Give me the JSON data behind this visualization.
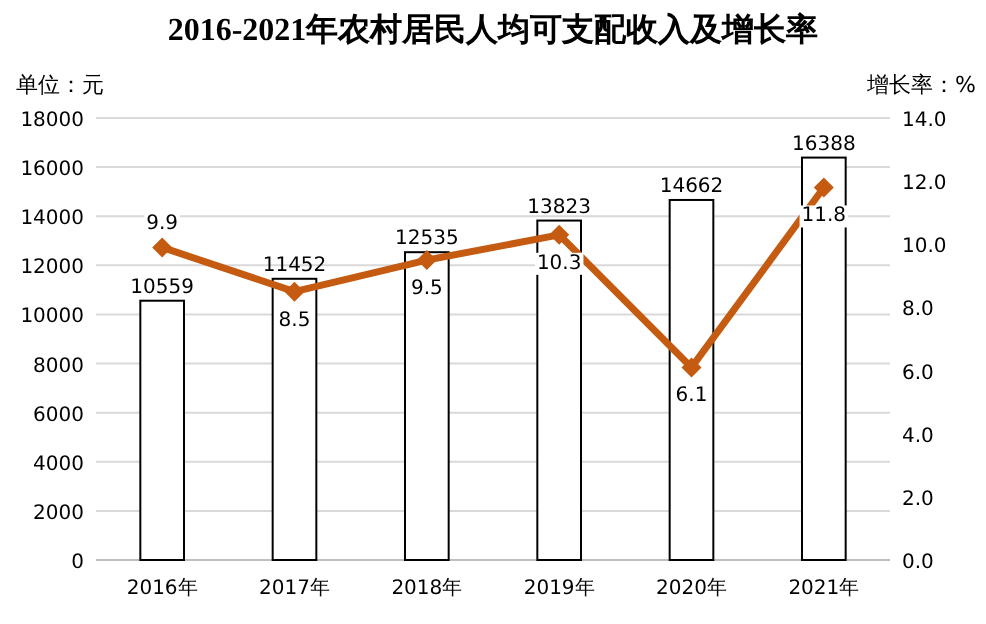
{
  "chart_data": {
    "type": "bar",
    "title": "2016-2021年农村居民人均可支配收入及增长率",
    "ylabel": "单位：元",
    "y2label": "增长率：%",
    "categories": [
      "2016年",
      "2017年",
      "2018年",
      "2019年",
      "2020年",
      "2021年"
    ],
    "series": [
      {
        "color": "#ffffff",
        "values": [
          10559,
          11452,
          12535,
          13823,
          14662,
          16388
        ]
      },
      {
        "type": "line",
        "axis": "y2",
        "color": "#c55a11",
        "values": [
          9.9,
          8.5,
          9.5,
          10.3,
          6.1,
          11.8
        ]
      }
    ],
    "ylim": [
      0,
      18000
    ],
    "yticks": [
      0,
      2000,
      4000,
      6000,
      8000,
      10000,
      12000,
      14000,
      16000,
      18000
    ],
    "y2lim": [
      0,
      14
    ],
    "y2ticks": [
      {
        "value": 0,
        "label": "0.0"
      },
      {
        "value": 2,
        "label": "2.0"
      },
      {
        "value": 4,
        "label": "4.0"
      },
      {
        "value": 6,
        "label": "6.0"
      },
      {
        "value": 8,
        "label": "8.0"
      },
      {
        "value": 10,
        "label": "10.0"
      },
      {
        "value": 12,
        "label": "12.0"
      },
      {
        "value": 14,
        "label": "14.0"
      }
    ],
    "grid": "y",
    "data_labels": true,
    "marker": "diamond"
  }
}
